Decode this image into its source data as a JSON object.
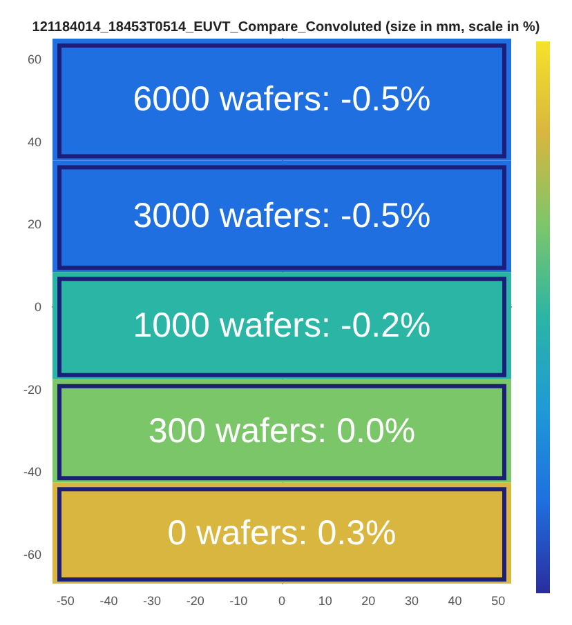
{
  "chart_data": {
    "type": "heatmap",
    "title": "121184014_18453T0514_EUVT_Compare_Convoluted (size in mm, scale in %)",
    "y": [
      49,
      22,
      -5,
      -30,
      -55
    ],
    "annotations": [
      "6000 wafers:",
      "3000 wafers:",
      "1000 wafers:",
      "300 wafers:",
      "0 wafers:"
    ],
    "cells": [
      [
        -0.5
      ],
      [
        -0.5
      ],
      [
        -0.2
      ],
      [
        0.0
      ],
      [
        0.3
      ]
    ],
    "cell_labels": [
      [
        "-0.5%"
      ],
      [
        "-0.5%"
      ],
      [
        "-0.2%"
      ],
      [
        "0.0%"
      ],
      [
        "0.3%"
      ]
    ],
    "xlim": [
      -53,
      53
    ],
    "xticks": [
      -50,
      -40,
      -30,
      -20,
      -10,
      0,
      10,
      20,
      30,
      40,
      50
    ],
    "ylim": [
      -67,
      65
    ],
    "yticks": [
      -60,
      -40,
      -20,
      0,
      20,
      40,
      60
    ]
  }
}
